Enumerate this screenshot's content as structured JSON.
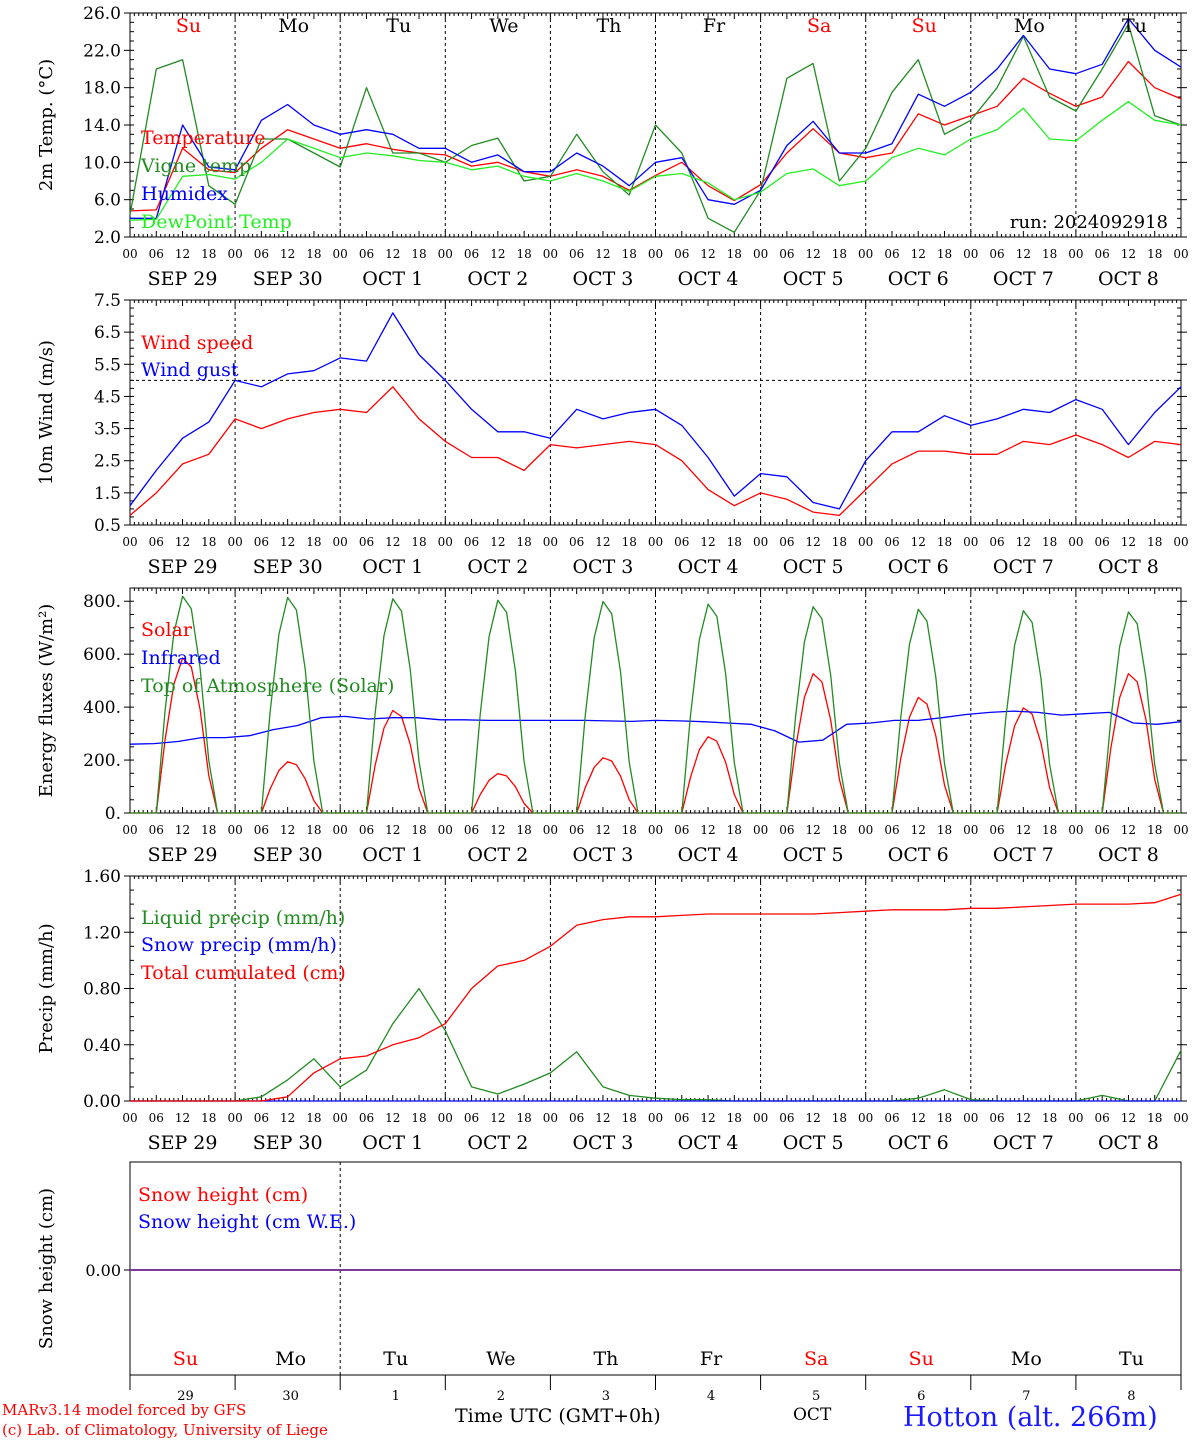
{
  "run_label": "run: 2024092918",
  "day_abbrev": [
    "Su",
    "Mo",
    "Tu",
    "We",
    "Th",
    "Fr",
    "Sa",
    "Su",
    "Mo",
    "Tu"
  ],
  "weekend_flags": [
    true,
    false,
    false,
    false,
    false,
    false,
    true,
    true,
    false,
    false
  ],
  "hour_ticks": [
    "00",
    "06",
    "12",
    "18"
  ],
  "date_labels": [
    "SEP 29",
    "SEP 30",
    "OCT  1",
    "OCT  2",
    "OCT  3",
    "OCT  4",
    "OCT  5",
    "OCT  6",
    "OCT  7",
    "OCT  8"
  ],
  "bottom_day_numbers": [
    "29",
    "30",
    "1",
    "2",
    "3",
    "4",
    "5",
    "6",
    "7",
    "8"
  ],
  "footer": {
    "model_line": "MARv3.14 model forced by GFS",
    "credit_line": "(c) Lab. of Climatology, University of Liege",
    "time_axis": "Time UTC (GMT+0h)",
    "month": "OCT",
    "station": "Hotton (alt. 266m)"
  },
  "colors": {
    "red": "#ff0000",
    "green": "#228b22",
    "blue": "#0000ff",
    "lightgreen": "#22ee22",
    "weekend": "#ff0000",
    "station": "#1a1aff"
  },
  "chart_data": [
    {
      "type": "line",
      "ylabel": "2m Temp. (°C)",
      "ylim": [
        2.0,
        26.0
      ],
      "yticks": [
        "2.0",
        "6.0",
        "10.0",
        "14.0",
        "18.0",
        "22.0",
        "26.0"
      ],
      "x_hours": [
        0,
        6,
        12,
        18,
        24,
        30,
        36,
        42,
        48,
        54,
        60,
        66,
        72,
        78,
        84,
        90,
        96,
        102,
        108,
        114,
        120,
        126,
        132,
        138,
        144,
        150,
        156,
        162,
        168,
        174,
        180,
        186,
        192,
        198,
        204,
        210,
        216,
        222,
        228,
        234,
        240
      ],
      "series": [
        {
          "name": "Temperature",
          "color": "red",
          "values": [
            4.8,
            4.9,
            11.5,
            9.2,
            8.9,
            11.5,
            13.5,
            12.5,
            11.5,
            12.0,
            11.4,
            11.0,
            10.8,
            9.6,
            10.0,
            9.0,
            8.5,
            9.2,
            8.5,
            7.0,
            8.6,
            10.0,
            7.5,
            5.9,
            7.6,
            11.0,
            13.6,
            11.0,
            10.5,
            11.0,
            15.2,
            14.0,
            15.0,
            16.0,
            19.0,
            17.4,
            16.0,
            17.0,
            20.8,
            18.0,
            16.8
          ]
        },
        {
          "name": "Vigne temp",
          "color": "green",
          "values": [
            4.4,
            20.0,
            21.0,
            7.5,
            5.5,
            12.5,
            12.5,
            11.0,
            9.5,
            18.0,
            11.0,
            11.0,
            10.0,
            11.8,
            12.6,
            8.0,
            8.5,
            13.0,
            9.0,
            6.5,
            14.0,
            11.0,
            4.0,
            2.5,
            7.0,
            19.0,
            20.6,
            8.0,
            11.5,
            17.5,
            21.0,
            13.0,
            14.5,
            18.0,
            23.5,
            17.0,
            15.5,
            20.0,
            24.8,
            15.0,
            14.0
          ]
        },
        {
          "name": "Humidex",
          "color": "blue",
          "values": [
            4.0,
            4.0,
            14.0,
            9.5,
            9.2,
            14.5,
            16.2,
            14.0,
            13.0,
            13.5,
            13.0,
            11.5,
            11.5,
            10.0,
            10.8,
            9.0,
            9.0,
            11.0,
            9.6,
            7.5,
            10.0,
            10.5,
            6.0,
            5.5,
            7.0,
            11.8,
            14.4,
            11.0,
            11.0,
            12.0,
            17.3,
            16.0,
            17.5,
            20.0,
            23.6,
            20.0,
            19.5,
            20.5,
            25.4,
            22.0,
            20.2
          ]
        },
        {
          "name": "DewPoint Temp",
          "color": "lightgreen",
          "values": [
            3.8,
            3.9,
            8.5,
            8.7,
            8.2,
            10.0,
            12.5,
            11.5,
            10.5,
            11.0,
            10.7,
            10.2,
            10.0,
            9.2,
            9.6,
            8.5,
            8.0,
            8.8,
            8.0,
            6.9,
            8.5,
            8.8,
            7.8,
            6.0,
            6.8,
            8.8,
            9.3,
            7.5,
            8.0,
            10.5,
            11.5,
            10.8,
            12.5,
            13.5,
            15.8,
            12.5,
            12.3,
            14.5,
            16.5,
            14.5,
            14.0
          ]
        }
      ]
    },
    {
      "type": "line",
      "ylabel": "10m Wind (m/s)",
      "ylim": [
        0.5,
        7.5
      ],
      "yticks": [
        "0.5",
        "1.5",
        "2.5",
        "3.5",
        "4.5",
        "5.5",
        "6.5",
        "7.5"
      ],
      "reference_line": 5.0,
      "x_hours": [
        0,
        6,
        12,
        18,
        24,
        30,
        36,
        42,
        48,
        54,
        60,
        66,
        72,
        78,
        84,
        90,
        96,
        102,
        108,
        114,
        120,
        126,
        132,
        138,
        144,
        150,
        156,
        162,
        168,
        174,
        180,
        186,
        192,
        198,
        204,
        210,
        216,
        222,
        228,
        234,
        240
      ],
      "series": [
        {
          "name": "Wind speed",
          "color": "red",
          "values": [
            0.8,
            1.5,
            2.4,
            2.7,
            3.8,
            3.5,
            3.8,
            4.0,
            4.1,
            4.0,
            4.8,
            3.8,
            3.1,
            2.6,
            2.6,
            2.2,
            3.0,
            2.9,
            3.0,
            3.1,
            3.0,
            2.5,
            1.6,
            1.1,
            1.5,
            1.3,
            0.9,
            0.8,
            1.6,
            2.4,
            2.8,
            2.8,
            2.7,
            2.7,
            3.1,
            3.0,
            3.3,
            3.0,
            2.6,
            3.1,
            3.0
          ]
        },
        {
          "name": "Wind gust",
          "color": "blue",
          "values": [
            1.1,
            2.2,
            3.2,
            3.7,
            5.0,
            4.8,
            5.2,
            5.3,
            5.7,
            5.6,
            7.1,
            5.8,
            5.0,
            4.1,
            3.4,
            3.4,
            3.2,
            4.1,
            3.8,
            4.0,
            4.1,
            3.6,
            2.6,
            1.4,
            2.1,
            2.0,
            1.2,
            1.0,
            2.5,
            3.4,
            3.4,
            3.9,
            3.6,
            3.8,
            4.1,
            4.0,
            4.4,
            4.1,
            3.0,
            4.0,
            4.8
          ]
        }
      ]
    },
    {
      "type": "line",
      "ylabel": "Energy fluxes (W/m²)",
      "ylim": [
        0,
        850
      ],
      "yticks": [
        "0.",
        "200.",
        "400.",
        "600.",
        "800."
      ],
      "series": [
        {
          "name": "Solar",
          "color": "red",
          "day_peaks": [
            590,
            195,
            390,
            150,
            210,
            290,
            530,
            440,
            400,
            530
          ]
        },
        {
          "name": "Infrared",
          "color": "blue",
          "values": [
            260,
            262,
            270,
            285,
            285,
            292,
            315,
            330,
            360,
            365,
            355,
            360,
            360,
            352,
            352,
            350,
            350,
            350,
            350,
            350,
            348,
            346,
            350,
            348,
            345,
            340,
            335,
            310,
            268,
            275,
            335,
            340,
            350,
            350,
            360,
            372,
            380,
            385,
            380,
            370,
            375,
            380,
            340,
            335,
            345
          ]
        },
        {
          "name": "Top of Atmosphere (Solar)",
          "color": "green",
          "day_peaks": [
            825,
            820,
            815,
            810,
            805,
            795,
            785,
            775,
            770,
            765
          ]
        }
      ]
    },
    {
      "type": "line",
      "ylabel": "Precip (mm/h)",
      "ylim": [
        0.0,
        1.6
      ],
      "yticks": [
        "0.00",
        "0.40",
        "0.80",
        "1.20",
        "1.60"
      ],
      "x_hours": [
        0,
        6,
        12,
        18,
        24,
        30,
        36,
        42,
        48,
        54,
        60,
        66,
        72,
        78,
        84,
        90,
        96,
        102,
        108,
        114,
        120,
        126,
        132,
        138,
        144,
        150,
        156,
        162,
        168,
        174,
        180,
        186,
        192,
        198,
        204,
        210,
        216,
        222,
        228,
        234,
        240
      ],
      "series": [
        {
          "name": "Liquid precip (mm/h)",
          "color": "green",
          "values": [
            0,
            0,
            0,
            0,
            0,
            0.03,
            0.15,
            0.3,
            0.1,
            0.22,
            0.55,
            0.8,
            0.5,
            0.1,
            0.05,
            0.12,
            0.2,
            0.35,
            0.1,
            0.04,
            0.02,
            0.01,
            0.01,
            0,
            0,
            0,
            0,
            0,
            0,
            0,
            0.02,
            0.08,
            0.01,
            0,
            0,
            0,
            0,
            0.04,
            0,
            0,
            0.36
          ]
        },
        {
          "name": "Snow precip (mm/h)",
          "color": "blue",
          "values": [
            0,
            0,
            0,
            0,
            0,
            0,
            0,
            0,
            0,
            0,
            0,
            0,
            0,
            0,
            0,
            0,
            0,
            0,
            0,
            0,
            0,
            0,
            0,
            0,
            0,
            0,
            0,
            0,
            0,
            0,
            0,
            0,
            0,
            0,
            0,
            0,
            0,
            0,
            0,
            0,
            0
          ]
        },
        {
          "name": "Total cumulated (cm)",
          "color": "red",
          "values": [
            0,
            0,
            0,
            0,
            0,
            0,
            0.03,
            0.2,
            0.3,
            0.32,
            0.4,
            0.45,
            0.55,
            0.8,
            0.96,
            1.0,
            1.1,
            1.25,
            1.29,
            1.31,
            1.31,
            1.32,
            1.33,
            1.33,
            1.33,
            1.33,
            1.33,
            1.34,
            1.35,
            1.36,
            1.36,
            1.36,
            1.37,
            1.37,
            1.38,
            1.39,
            1.4,
            1.4,
            1.4,
            1.41,
            1.47
          ]
        }
      ]
    },
    {
      "type": "line",
      "ylabel": "Snow height (cm)",
      "yticks": [
        "0.00"
      ],
      "series": [
        {
          "name": "Snow height (cm)",
          "color": "red",
          "values": [
            0,
            0
          ]
        },
        {
          "name": "Snow height (cm W.E.)",
          "color": "blue",
          "values": [
            0,
            0
          ]
        }
      ]
    }
  ]
}
